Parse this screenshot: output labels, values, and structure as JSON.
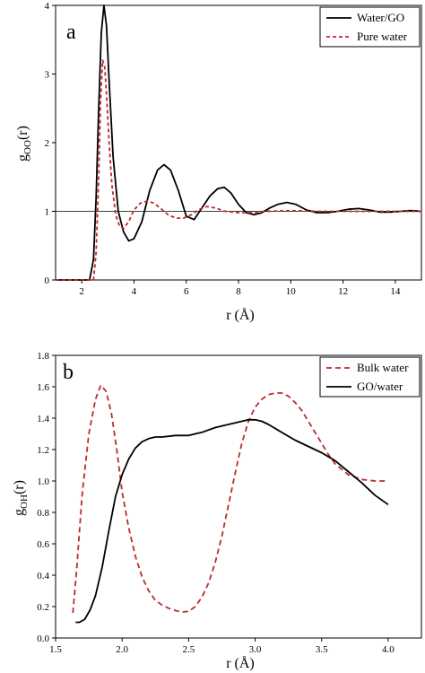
{
  "chart_data": [
    {
      "type": "line",
      "panel_label": "a",
      "xlabel": "r (Å)",
      "ylabel_main": "g",
      "ylabel_sub": "OO",
      "ylabel_suffix": "(r)",
      "xlim": [
        1,
        15
      ],
      "ylim": [
        0,
        4
      ],
      "x_ticks": [
        2,
        4,
        6,
        8,
        10,
        12,
        14
      ],
      "x_tick_labels": [
        "2",
        "4",
        "6",
        "8",
        "10",
        "12",
        "14"
      ],
      "y_ticks": [
        0,
        1,
        2,
        3,
        4
      ],
      "y_tick_labels": [
        "0",
        "1",
        "2",
        "3",
        "4"
      ],
      "reference_line": {
        "y": 1,
        "color": "#000000"
      },
      "legend": {
        "placement": "top-right"
      },
      "series": [
        {
          "name": "Water/GO",
          "color": "#000000",
          "style": "solid",
          "x": [
            1,
            2.3,
            2.45,
            2.55,
            2.65,
            2.75,
            2.85,
            2.95,
            3.05,
            3.2,
            3.4,
            3.6,
            3.8,
            4.0,
            4.3,
            4.6,
            4.9,
            5.15,
            5.4,
            5.7,
            6.0,
            6.3,
            6.6,
            6.9,
            7.2,
            7.45,
            7.7,
            8.0,
            8.3,
            8.6,
            8.9,
            9.2,
            9.5,
            9.85,
            10.2,
            10.6,
            11.0,
            11.4,
            11.8,
            12.2,
            12.6,
            13.0,
            13.4,
            13.8,
            14.2,
            14.6,
            15
          ],
          "y": [
            0,
            0,
            0.3,
            1.2,
            2.5,
            3.6,
            4.0,
            3.7,
            2.9,
            1.8,
            1.0,
            0.7,
            0.57,
            0.6,
            0.85,
            1.3,
            1.6,
            1.68,
            1.6,
            1.3,
            0.93,
            0.88,
            1.05,
            1.22,
            1.33,
            1.35,
            1.27,
            1.1,
            0.98,
            0.95,
            0.98,
            1.05,
            1.1,
            1.13,
            1.1,
            1.02,
            0.98,
            0.98,
            1.0,
            1.03,
            1.04,
            1.02,
            0.99,
            0.99,
            1.0,
            1.01,
            1.0
          ]
        },
        {
          "name": "Pure water",
          "color": "#c0282d",
          "style": "dashed",
          "x": [
            1,
            2.45,
            2.55,
            2.65,
            2.72,
            2.8,
            2.88,
            2.95,
            3.05,
            3.15,
            3.3,
            3.45,
            3.6,
            3.8,
            4.0,
            4.25,
            4.5,
            4.75,
            5.0,
            5.3,
            5.6,
            5.9,
            6.2,
            6.5,
            6.8,
            7.1,
            7.5,
            8.0,
            8.5,
            9.0,
            10.0,
            11.0,
            12.0,
            13.0,
            14.0,
            15
          ],
          "y": [
            0,
            0,
            0.4,
            1.5,
            2.6,
            3.2,
            3.1,
            2.7,
            2.0,
            1.4,
            0.95,
            0.78,
            0.75,
            0.85,
            1.02,
            1.12,
            1.15,
            1.12,
            1.05,
            0.95,
            0.9,
            0.9,
            0.95,
            1.03,
            1.07,
            1.05,
            1.0,
            0.98,
            0.98,
            1.0,
            1.01,
            1.0,
            1.0,
            1.0,
            1.0,
            1.0
          ]
        }
      ]
    },
    {
      "type": "line",
      "panel_label": "b",
      "xlabel": "r (Å)",
      "ylabel_main": "g",
      "ylabel_sub": "OH",
      "ylabel_suffix": "(r)",
      "xlim": [
        1.5,
        4.25
      ],
      "ylim": [
        0,
        1.8
      ],
      "x_ticks": [
        1.5,
        2.0,
        2.5,
        3.0,
        3.5,
        4.0
      ],
      "x_tick_labels": [
        "1.5",
        "2.0",
        "2.5",
        "3.0",
        "3.5",
        "4.0"
      ],
      "y_ticks": [
        0.0,
        0.2,
        0.4,
        0.6,
        0.8,
        1.0,
        1.2,
        1.4,
        1.6,
        1.8
      ],
      "y_tick_labels": [
        "0.0",
        "0.2",
        "0.4",
        "0.6",
        "0.8",
        "1.0",
        "1.2",
        "1.4",
        "1.6",
        "1.8"
      ],
      "legend": {
        "placement": "top-right"
      },
      "series": [
        {
          "name": "Bulk water",
          "color": "#c0282d",
          "style": "dashed",
          "x": [
            1.63,
            1.66,
            1.7,
            1.75,
            1.8,
            1.84,
            1.88,
            1.92,
            1.96,
            2.0,
            2.05,
            2.1,
            2.15,
            2.2,
            2.25,
            2.3,
            2.35,
            2.4,
            2.45,
            2.5,
            2.55,
            2.6,
            2.65,
            2.7,
            2.75,
            2.8,
            2.85,
            2.9,
            2.95,
            3.0,
            3.05,
            3.1,
            3.15,
            3.2,
            3.25,
            3.3,
            3.35,
            3.4,
            3.45,
            3.5,
            3.55,
            3.6,
            3.7,
            3.8,
            3.9,
            4.0
          ],
          "y": [
            0.16,
            0.45,
            0.92,
            1.3,
            1.52,
            1.61,
            1.57,
            1.43,
            1.2,
            0.93,
            0.7,
            0.52,
            0.39,
            0.3,
            0.24,
            0.21,
            0.19,
            0.175,
            0.165,
            0.17,
            0.2,
            0.26,
            0.35,
            0.48,
            0.65,
            0.85,
            1.05,
            1.24,
            1.38,
            1.47,
            1.52,
            1.55,
            1.56,
            1.56,
            1.54,
            1.5,
            1.45,
            1.38,
            1.31,
            1.24,
            1.17,
            1.11,
            1.04,
            1.01,
            1.0,
            1.0
          ]
        },
        {
          "name": "GO/water",
          "color": "#000000",
          "style": "solid",
          "x": [
            1.65,
            1.68,
            1.72,
            1.76,
            1.8,
            1.85,
            1.9,
            1.95,
            2.0,
            2.05,
            2.1,
            2.15,
            2.2,
            2.25,
            2.3,
            2.4,
            2.5,
            2.6,
            2.7,
            2.8,
            2.9,
            2.95,
            3.0,
            3.05,
            3.1,
            3.2,
            3.3,
            3.4,
            3.5,
            3.6,
            3.7,
            3.8,
            3.9,
            4.0
          ],
          "y": [
            0.1,
            0.1,
            0.12,
            0.18,
            0.27,
            0.45,
            0.68,
            0.9,
            1.04,
            1.14,
            1.21,
            1.25,
            1.27,
            1.28,
            1.28,
            1.29,
            1.29,
            1.31,
            1.34,
            1.36,
            1.38,
            1.39,
            1.39,
            1.38,
            1.36,
            1.31,
            1.26,
            1.22,
            1.18,
            1.13,
            1.06,
            0.99,
            0.91,
            0.85
          ]
        }
      ]
    }
  ]
}
